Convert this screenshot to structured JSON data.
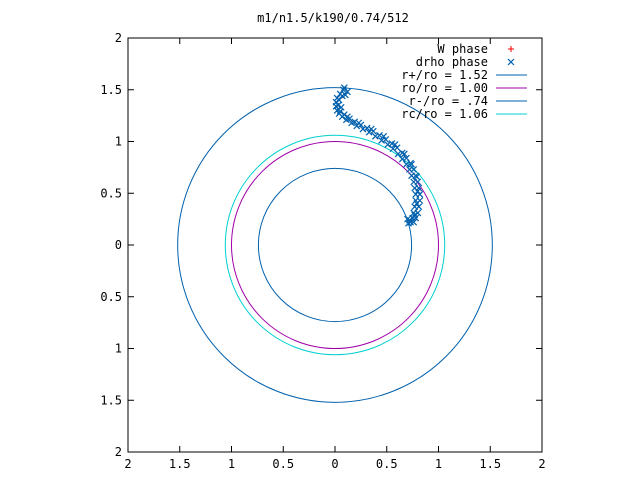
{
  "chart_data": {
    "type": "scatter",
    "title": "m1/n1.5/k190/0.74/512",
    "xlabel": "",
    "ylabel": "",
    "xlim": [
      -2,
      2
    ],
    "ylim": [
      -2,
      2
    ],
    "x_ticks": [
      -2,
      -1.5,
      -1,
      -0.5,
      0,
      0.5,
      1,
      1.5,
      2
    ],
    "y_ticks": [
      -2,
      -1.5,
      -1,
      -0.5,
      0,
      0.5,
      1,
      1.5,
      2
    ],
    "x_tick_labels": [
      "2",
      "1.5",
      "1",
      "0.5",
      "0",
      "0.5",
      "1",
      "1.5",
      "2"
    ],
    "y_tick_labels": [
      "2",
      "1.5",
      "1",
      "0.5",
      "0",
      "0.5",
      "1",
      "1.5",
      "2"
    ],
    "grid": false,
    "legend_position": "top-right",
    "series": [
      {
        "name": "W phase",
        "kind": "points",
        "marker": "plus",
        "color": "#ff0000",
        "points": []
      },
      {
        "name": "drho phase",
        "kind": "points",
        "marker": "cross",
        "color": "#0060ad",
        "points": [
          [
            0.08,
            1.5
          ],
          [
            0.05,
            1.46
          ],
          [
            0.02,
            1.42
          ],
          [
            0.01,
            1.38
          ],
          [
            0.01,
            1.34
          ],
          [
            0.02,
            1.3
          ],
          [
            0.04,
            1.27
          ],
          [
            0.07,
            1.24
          ],
          [
            0.11,
            1.21
          ],
          [
            0.16,
            1.18
          ],
          [
            0.21,
            1.15
          ],
          [
            0.27,
            1.12
          ],
          [
            0.33,
            1.09
          ],
          [
            0.39,
            1.05
          ],
          [
            0.45,
            1.01
          ],
          [
            0.51,
            0.97
          ],
          [
            0.56,
            0.93
          ],
          [
            0.61,
            0.88
          ],
          [
            0.65,
            0.83
          ],
          [
            0.69,
            0.78
          ],
          [
            0.72,
            0.73
          ],
          [
            0.74,
            0.67
          ],
          [
            0.76,
            0.61
          ],
          [
            0.77,
            0.55
          ],
          [
            0.78,
            0.49
          ],
          [
            0.78,
            0.43
          ],
          [
            0.77,
            0.37
          ],
          [
            0.76,
            0.31
          ],
          [
            0.75,
            0.26
          ],
          [
            0.73,
            0.22
          ],
          [
            0.12,
            1.48
          ],
          [
            0.07,
            1.44
          ],
          [
            0.04,
            1.4
          ],
          [
            0.03,
            1.35
          ],
          [
            0.05,
            1.29
          ],
          [
            0.09,
            1.26
          ],
          [
            0.14,
            1.22
          ],
          [
            0.19,
            1.19
          ],
          [
            0.25,
            1.16
          ],
          [
            0.31,
            1.13
          ],
          [
            0.37,
            1.1
          ],
          [
            0.43,
            1.06
          ],
          [
            0.49,
            1.02
          ],
          [
            0.55,
            0.98
          ],
          [
            0.6,
            0.94
          ],
          [
            0.65,
            0.89
          ],
          [
            0.69,
            0.84
          ],
          [
            0.73,
            0.79
          ],
          [
            0.76,
            0.73
          ],
          [
            0.78,
            0.67
          ],
          [
            0.8,
            0.61
          ],
          [
            0.81,
            0.55
          ],
          [
            0.82,
            0.49
          ],
          [
            0.82,
            0.43
          ],
          [
            0.81,
            0.37
          ],
          [
            0.8,
            0.31
          ],
          [
            0.78,
            0.26
          ],
          [
            0.76,
            0.22
          ],
          [
            0.71,
            0.21
          ],
          [
            0.7,
            0.25
          ],
          [
            0.09,
            1.52
          ],
          [
            0.1,
            1.45
          ],
          [
            0.06,
            1.33
          ],
          [
            0.12,
            1.24
          ],
          [
            0.23,
            1.18
          ],
          [
            0.35,
            1.12
          ],
          [
            0.47,
            1.05
          ],
          [
            0.58,
            0.97
          ],
          [
            0.67,
            0.88
          ],
          [
            0.74,
            0.78
          ],
          [
            0.79,
            0.66
          ],
          [
            0.8,
            0.52
          ],
          [
            0.79,
            0.4
          ],
          [
            0.77,
            0.29
          ],
          [
            0.72,
            0.24
          ]
        ]
      },
      {
        "name": "r+/ro = 1.52",
        "kind": "circle",
        "radius": 1.52,
        "color": "#0060ad"
      },
      {
        "name": "ro/ro = 1.00",
        "kind": "circle",
        "radius": 1.0,
        "color": "#a000a8"
      },
      {
        "name": "r-/ro = .74",
        "kind": "circle",
        "radius": 0.74,
        "color": "#0060ad"
      },
      {
        "name": "rc/ro = 1.06",
        "kind": "circle",
        "radius": 1.06,
        "color": "#00d0d0"
      }
    ]
  }
}
